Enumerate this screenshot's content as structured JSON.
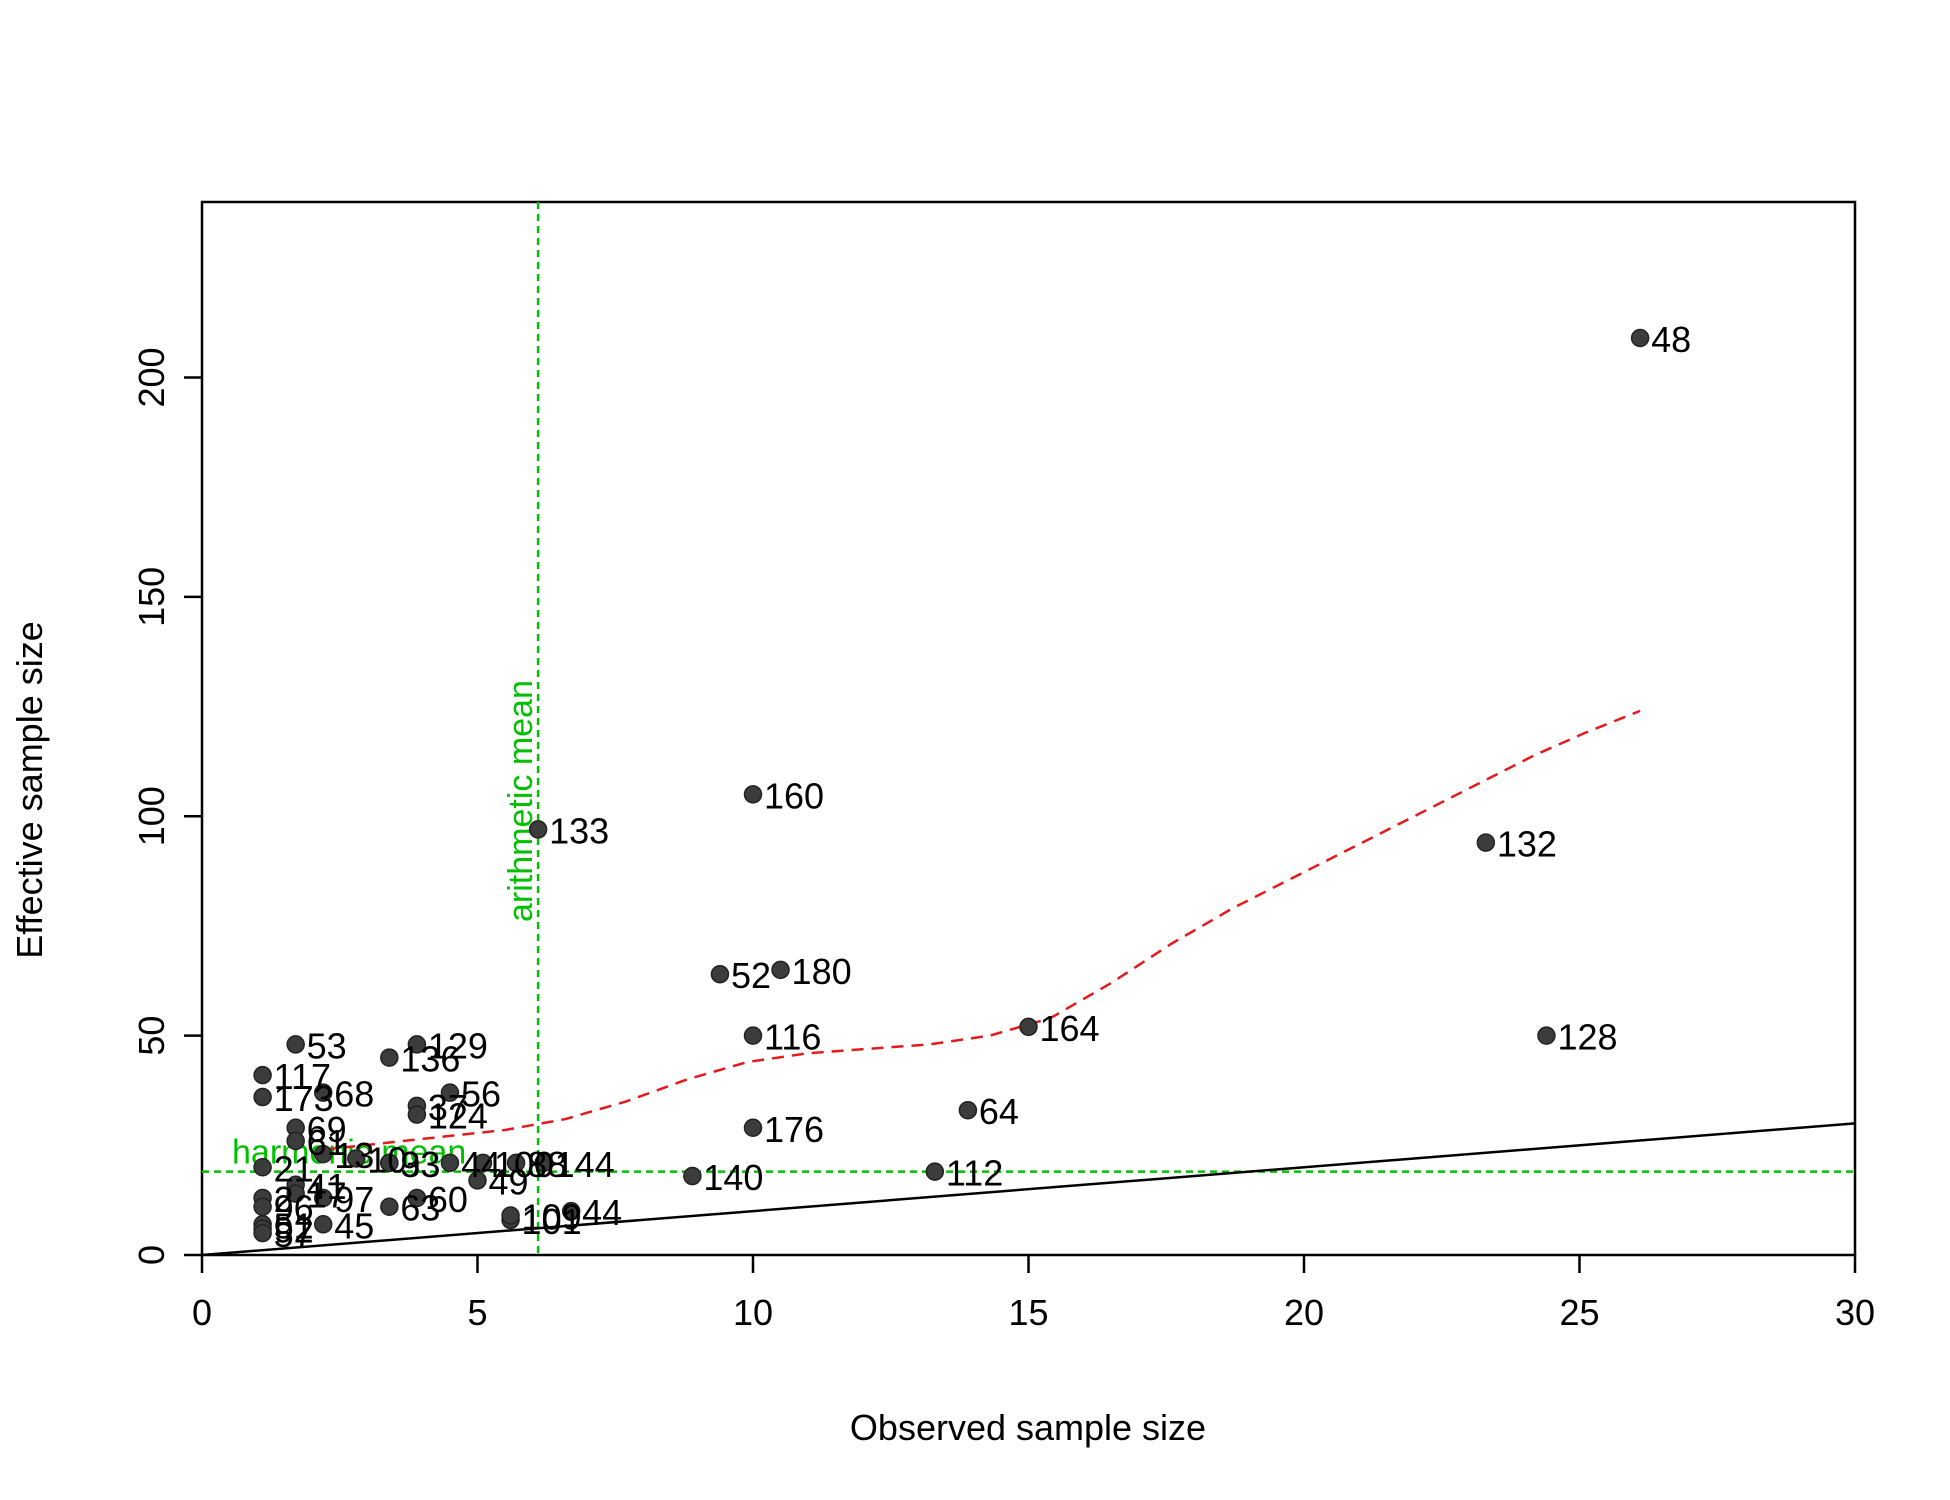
{
  "chart_data": {
    "type": "scatter",
    "title": "",
    "xlabel": "Observed sample size",
    "ylabel": "Effective sample size",
    "xlim": [
      0,
      30
    ],
    "ylim": [
      0,
      240
    ],
    "x_ticks": [
      0,
      5,
      10,
      15,
      20,
      25,
      30
    ],
    "y_ticks": [
      0,
      50,
      100,
      150,
      200
    ],
    "grid": false,
    "colors": {
      "points": "#3c3c3c",
      "smooth_line": "#e41a1c",
      "identity_line": "#000000",
      "mean_lines": "#00c000"
    },
    "points": [
      {
        "label": "48",
        "x": 26.1,
        "y": 209
      },
      {
        "label": "160",
        "x": 10.0,
        "y": 105
      },
      {
        "label": "133",
        "x": 6.1,
        "y": 97
      },
      {
        "label": "132",
        "x": 23.3,
        "y": 94
      },
      {
        "label": "52",
        "x": 9.4,
        "y": 64
      },
      {
        "label": "180",
        "x": 10.5,
        "y": 65
      },
      {
        "label": "164",
        "x": 15.0,
        "y": 52
      },
      {
        "label": "128",
        "x": 24.4,
        "y": 50
      },
      {
        "label": "116",
        "x": 10.0,
        "y": 50
      },
      {
        "label": "53",
        "x": 1.7,
        "y": 48
      },
      {
        "label": "129",
        "x": 3.9,
        "y": 48
      },
      {
        "label": "136",
        "x": 3.4,
        "y": 45
      },
      {
        "label": "117",
        "x": 1.1,
        "y": 41
      },
      {
        "label": "68",
        "x": 2.2,
        "y": 37
      },
      {
        "label": "56",
        "x": 4.5,
        "y": 37
      },
      {
        "label": "173",
        "x": 1.1,
        "y": 36
      },
      {
        "label": "37",
        "x": 3.9,
        "y": 34
      },
      {
        "label": "64",
        "x": 13.9,
        "y": 33
      },
      {
        "label": "124",
        "x": 3.9,
        "y": 32
      },
      {
        "label": "69",
        "x": 1.7,
        "y": 29
      },
      {
        "label": "176",
        "x": 10.0,
        "y": 29
      },
      {
        "label": "61",
        "x": 1.7,
        "y": 26
      },
      {
        "label": "13",
        "x": 2.2,
        "y": 23
      },
      {
        "label": "10",
        "x": 2.8,
        "y": 22
      },
      {
        "label": "93",
        "x": 3.4,
        "y": 21
      },
      {
        "label": "33",
        "x": 3.4,
        "y": 21
      },
      {
        "label": "44",
        "x": 4.5,
        "y": 21
      },
      {
        "label": "100",
        "x": 5.1,
        "y": 21
      },
      {
        "label": "88",
        "x": 5.7,
        "y": 21
      },
      {
        "label": "144",
        "x": 6.2,
        "y": 21
      },
      {
        "label": "21",
        "x": 1.1,
        "y": 20
      },
      {
        "label": "112",
        "x": 13.3,
        "y": 19
      },
      {
        "label": "140",
        "x": 8.9,
        "y": 18
      },
      {
        "label": "49",
        "x": 5.0,
        "y": 17
      },
      {
        "label": "41",
        "x": 1.7,
        "y": 16
      },
      {
        "label": "17",
        "x": 1.7,
        "y": 14
      },
      {
        "label": "2",
        "x": 1.1,
        "y": 13
      },
      {
        "label": "97",
        "x": 2.2,
        "y": 13
      },
      {
        "label": "60",
        "x": 3.9,
        "y": 13
      },
      {
        "label": "96",
        "x": 1.1,
        "y": 11
      },
      {
        "label": "63",
        "x": 3.4,
        "y": 11
      },
      {
        "label": "144b",
        "x": 6.7,
        "y": 10
      },
      {
        "label": "101",
        "x": 5.6,
        "y": 8
      },
      {
        "label": "109",
        "x": 5.6,
        "y": 9
      },
      {
        "label": "45",
        "x": 2.2,
        "y": 7
      },
      {
        "label": "51",
        "x": 1.1,
        "y": 7
      },
      {
        "label": "92",
        "x": 1.1,
        "y": 6
      },
      {
        "label": "57",
        "x": 1.1,
        "y": 5
      }
    ],
    "point_label_text": {
      "144b": "44"
    },
    "smooth_curve": {
      "x": [
        2.2,
        3.3,
        4.4,
        5.5,
        6.6,
        7.7,
        8.8,
        9.9,
        11.0,
        12.1,
        13.2,
        14.3,
        15.4,
        16.5,
        17.6,
        18.7,
        19.8,
        20.9,
        22.0,
        23.1,
        24.2,
        25.1,
        26.1
      ],
      "y": [
        24,
        25.5,
        27,
        28.5,
        31,
        35,
        40,
        44,
        46,
        47,
        48,
        50,
        54,
        62,
        71,
        79,
        86,
        93,
        100,
        107,
        114,
        119,
        124
      ]
    },
    "identity_line": {
      "x": [
        0,
        30
      ],
      "y": [
        0,
        30
      ]
    },
    "reference_lines": [
      {
        "orientation": "vertical",
        "value": 6.1,
        "label": "arithmetic mean"
      },
      {
        "orientation": "horizontal",
        "value": 19,
        "label": "harmonic mean"
      }
    ]
  }
}
